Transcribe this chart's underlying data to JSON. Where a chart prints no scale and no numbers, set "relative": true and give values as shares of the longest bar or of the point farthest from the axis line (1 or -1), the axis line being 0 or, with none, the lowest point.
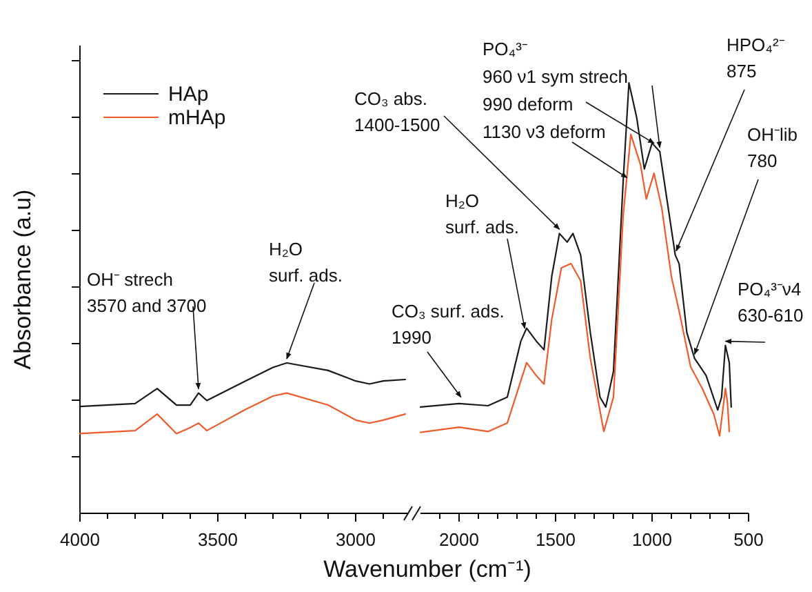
{
  "chart_data": [
    {
      "type": "line",
      "relative": true,
      "ylabel": "Absorbance (a.u)",
      "legend": "top left",
      "xlim": [
        4000,
        2810
      ],
      "xticks": [
        4000,
        {
          "value": 3900,
          "label": null
        },
        {
          "value": 3800,
          "label": null
        },
        {
          "value": 3700,
          "label": null
        },
        {
          "value": 3600,
          "label": null
        },
        3500,
        {
          "value": 3400,
          "label": null
        },
        {
          "value": 3300,
          "label": null
        },
        {
          "value": 3200,
          "label": null
        },
        {
          "value": 3100,
          "label": null
        },
        3000,
        {
          "value": 2900,
          "label": null
        }
      ],
      "x": [
        4000,
        3800,
        3720,
        3650,
        3600,
        3570,
        3540,
        3400,
        3300,
        3250,
        3100,
        3000,
        2950,
        2900,
        2820
      ],
      "series": [
        {
          "name": "HAp",
          "color": "#1a1a1a",
          "values": [
            0.71,
            0.73,
            0.83,
            0.72,
            0.72,
            0.8,
            0.75,
            0.88,
            0.97,
            1,
            0.95,
            0.88,
            0.86,
            0.88,
            0.89
          ]
        },
        {
          "name": "mHAp",
          "color": "#f05a2a",
          "values": [
            0.53,
            0.55,
            0.66,
            0.53,
            0.57,
            0.6,
            0.55,
            0.69,
            0.78,
            0.8,
            0.72,
            0.62,
            0.6,
            0.62,
            0.66
          ]
        }
      ],
      "annotations": [
        {
          "text": "OH⁻ strech\n3570 and 3700",
          "x": 3570,
          "y": 0.8
        },
        {
          "text": "H₂O\nsurf. ads.",
          "x": 3250,
          "y": 1
        }
      ]
    },
    {
      "type": "line",
      "relative": true,
      "xlabel": "Wavenumber (cm⁻¹)",
      "xlim": [
        2200,
        500
      ],
      "xticks": [
        {
          "value": 2100,
          "label": null
        },
        2000,
        {
          "value": 1900,
          "label": null
        },
        {
          "value": 1800,
          "label": null
        },
        {
          "value": 1700,
          "label": null
        },
        {
          "value": 1600,
          "label": null
        },
        1500,
        {
          "value": 1400,
          "label": null
        },
        {
          "value": 1300,
          "label": null
        },
        {
          "value": 1200,
          "label": null
        },
        {
          "value": 1100,
          "label": null
        },
        1000,
        {
          "value": 900,
          "label": null
        },
        {
          "value": 800,
          "label": null
        },
        {
          "value": 700,
          "label": null
        },
        {
          "value": 600,
          "label": null
        },
        500
      ],
      "series": [
        {
          "color": "#1a1a1a",
          "x": [
            2200,
            2000,
            1850,
            1750,
            1680,
            1650,
            1600,
            1560,
            1520,
            1480,
            1440,
            1410,
            1370,
            1320,
            1270,
            1240,
            1200,
            1150,
            1120,
            1080,
            1040,
            1000,
            960,
            920,
            880,
            860,
            820,
            780,
            720,
            660,
            640,
            620,
            600,
            590
          ],
          "values": [
            0.247,
            0.255,
            0.25,
            0.27,
            0.4,
            0.43,
            0.4,
            0.38,
            0.55,
            0.65,
            0.63,
            0.65,
            0.6,
            0.42,
            0.27,
            0.247,
            0.33,
            0.77,
            1,
            0.92,
            0.8,
            0.86,
            0.84,
            0.72,
            0.6,
            0.58,
            0.42,
            0.36,
            0.32,
            0.24,
            0.27,
            0.39,
            0.35,
            0.247
          ]
        },
        {
          "color": "#f05a2a",
          "x": [
            2200,
            2000,
            1850,
            1750,
            1650,
            1600,
            1560,
            1520,
            1470,
            1420,
            1370,
            1320,
            1250,
            1200,
            1150,
            1110,
            1060,
            1030,
            990,
            950,
            900,
            860,
            800,
            740,
            680,
            650,
            620,
            610,
            600
          ],
          "values": [
            0.188,
            0.2,
            0.19,
            0.21,
            0.35,
            0.32,
            0.3,
            0.45,
            0.57,
            0.58,
            0.54,
            0.36,
            0.19,
            0.27,
            0.69,
            0.88,
            0.81,
            0.73,
            0.79,
            0.71,
            0.55,
            0.47,
            0.34,
            0.29,
            0.23,
            0.18,
            0.29,
            0.26,
            0.19
          ]
        }
      ],
      "annotations": [
        {
          "text": "CO₃ surf. ads.\n1990",
          "x": 1990,
          "y": 0.26
        },
        {
          "text": "H₂O\nsurf. ads.",
          "x": 1660,
          "y": 0.42
        },
        {
          "text": "CO₃ abs.\n1400-1500",
          "x": 1480,
          "y": 0.65
        },
        "PO₄³⁻",
        {
          "text": "960 ν1 sym strech",
          "x": 960,
          "y": 0.84
        },
        {
          "text": "990 deform",
          "x": 990,
          "y": 0.85
        },
        {
          "text": "1130 ν3 deform",
          "x": 1130,
          "y": 0.77
        },
        {
          "text": "HPO₄²⁻\n875",
          "x": 875,
          "y": 0.6
        },
        {
          "text": "OH⁻lib\n780",
          "x": 780,
          "y": 0.36
        },
        {
          "text": "PO₄³⁻ν4\n630-610",
          "x": 620,
          "y": 0.39
        }
      ]
    }
  ]
}
